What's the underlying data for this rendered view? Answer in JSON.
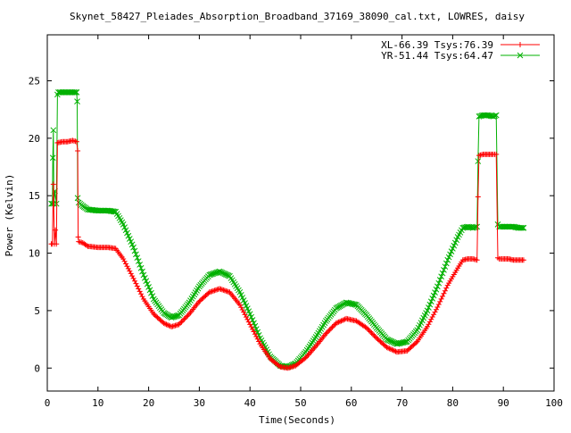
{
  "chart_data": {
    "type": "line",
    "title": "Skynet_58427_Pleiades_Absorption_Broadband_37169_38090_cal.txt, LOWRES, daisy",
    "xlabel": "Time(Seconds)",
    "ylabel": "Power (Kelvin)",
    "xlim": [
      0,
      100
    ],
    "ylim": [
      -2,
      29
    ],
    "xticks": [
      "0",
      "10",
      "20",
      "30",
      "40",
      "50",
      "60",
      "70",
      "80",
      "90",
      "100"
    ],
    "yticks": [
      "0",
      "5",
      "10",
      "15",
      "20",
      "25"
    ],
    "grid": false,
    "legend_position": "top-right",
    "series": [
      {
        "name": "XL-66.39 Tsys:76.39",
        "color": "#ff0000",
        "marker": "plus",
        "points": [
          [
            0.8,
            10.8
          ],
          [
            1.0,
            10.8
          ],
          [
            1.2,
            16.0
          ],
          [
            1.4,
            10.8
          ],
          [
            1.6,
            12.0
          ],
          [
            1.8,
            10.8
          ],
          [
            2.0,
            19.6
          ],
          [
            3.0,
            19.7
          ],
          [
            4.0,
            19.7
          ],
          [
            5.0,
            19.8
          ],
          [
            5.8,
            19.7
          ],
          [
            6.0,
            18.9
          ],
          [
            6.1,
            11.4
          ],
          [
            6.2,
            11.0
          ],
          [
            7.0,
            10.9
          ],
          [
            8.0,
            10.6
          ],
          [
            10.0,
            10.5
          ],
          [
            12.0,
            10.5
          ],
          [
            13.5,
            10.4
          ],
          [
            15.0,
            9.5
          ],
          [
            17.0,
            7.8
          ],
          [
            19.0,
            6.0
          ],
          [
            21.0,
            4.7
          ],
          [
            23.0,
            3.9
          ],
          [
            24.5,
            3.6
          ],
          [
            26.0,
            3.8
          ],
          [
            28.0,
            4.7
          ],
          [
            30.0,
            5.8
          ],
          [
            32.0,
            6.6
          ],
          [
            34.0,
            6.9
          ],
          [
            36.0,
            6.6
          ],
          [
            38.0,
            5.5
          ],
          [
            40.0,
            3.8
          ],
          [
            42.0,
            2.1
          ],
          [
            44.0,
            0.8
          ],
          [
            46.0,
            0.1
          ],
          [
            47.5,
            0.0
          ],
          [
            49.0,
            0.2
          ],
          [
            51.0,
            0.9
          ],
          [
            53.0,
            1.9
          ],
          [
            55.0,
            3.0
          ],
          [
            57.0,
            3.9
          ],
          [
            59.0,
            4.3
          ],
          [
            61.0,
            4.1
          ],
          [
            63.0,
            3.5
          ],
          [
            65.0,
            2.6
          ],
          [
            67.0,
            1.8
          ],
          [
            69.0,
            1.4
          ],
          [
            71.0,
            1.5
          ],
          [
            73.0,
            2.3
          ],
          [
            75.0,
            3.6
          ],
          [
            77.0,
            5.3
          ],
          [
            79.0,
            7.2
          ],
          [
            81.0,
            8.7
          ],
          [
            82.0,
            9.4
          ],
          [
            83.0,
            9.5
          ],
          [
            84.0,
            9.5
          ],
          [
            84.8,
            9.4
          ],
          [
            85.0,
            14.9
          ],
          [
            85.2,
            18.5
          ],
          [
            86.0,
            18.6
          ],
          [
            87.0,
            18.6
          ],
          [
            88.0,
            18.6
          ],
          [
            88.6,
            18.6
          ],
          [
            88.9,
            9.6
          ],
          [
            89.2,
            9.5
          ],
          [
            90.0,
            9.5
          ],
          [
            91.0,
            9.5
          ],
          [
            92.0,
            9.4
          ],
          [
            93.0,
            9.4
          ],
          [
            94.0,
            9.4
          ]
        ]
      },
      {
        "name": "YR-51.44 Tsys:64.47",
        "color": "#00b000",
        "marker": "cross",
        "points": [
          [
            0.8,
            14.3
          ],
          [
            1.0,
            14.3
          ],
          [
            1.1,
            18.3
          ],
          [
            1.2,
            20.7
          ],
          [
            1.3,
            14.3
          ],
          [
            1.5,
            15.4
          ],
          [
            1.8,
            14.3
          ],
          [
            2.0,
            23.8
          ],
          [
            2.2,
            24.0
          ],
          [
            3.0,
            24.0
          ],
          [
            4.0,
            24.0
          ],
          [
            5.0,
            24.0
          ],
          [
            5.8,
            24.0
          ],
          [
            5.9,
            23.2
          ],
          [
            6.0,
            14.8
          ],
          [
            6.2,
            14.4
          ],
          [
            7.0,
            14.1
          ],
          [
            8.0,
            13.8
          ],
          [
            10.0,
            13.7
          ],
          [
            12.0,
            13.7
          ],
          [
            13.5,
            13.6
          ],
          [
            15.0,
            12.5
          ],
          [
            17.0,
            10.5
          ],
          [
            19.0,
            8.1
          ],
          [
            21.0,
            6.0
          ],
          [
            23.0,
            4.8
          ],
          [
            24.5,
            4.4
          ],
          [
            26.0,
            4.6
          ],
          [
            28.0,
            5.7
          ],
          [
            30.0,
            7.1
          ],
          [
            32.0,
            8.1
          ],
          [
            34.0,
            8.4
          ],
          [
            36.0,
            8.0
          ],
          [
            38.0,
            6.6
          ],
          [
            40.0,
            4.7
          ],
          [
            42.0,
            2.6
          ],
          [
            44.0,
            1.0
          ],
          [
            46.0,
            0.2
          ],
          [
            47.5,
            0.1
          ],
          [
            49.0,
            0.4
          ],
          [
            51.0,
            1.4
          ],
          [
            53.0,
            2.7
          ],
          [
            55.0,
            4.1
          ],
          [
            57.0,
            5.2
          ],
          [
            59.0,
            5.7
          ],
          [
            61.0,
            5.5
          ],
          [
            63.0,
            4.6
          ],
          [
            65.0,
            3.5
          ],
          [
            67.0,
            2.5
          ],
          [
            69.0,
            2.1
          ],
          [
            71.0,
            2.3
          ],
          [
            73.0,
            3.3
          ],
          [
            75.0,
            5.0
          ],
          [
            77.0,
            7.1
          ],
          [
            79.0,
            9.4
          ],
          [
            81.0,
            11.4
          ],
          [
            82.0,
            12.2
          ],
          [
            83.0,
            12.3
          ],
          [
            84.0,
            12.2
          ],
          [
            84.8,
            12.3
          ],
          [
            85.0,
            18.0
          ],
          [
            85.2,
            21.9
          ],
          [
            86.0,
            22.0
          ],
          [
            87.0,
            22.0
          ],
          [
            88.0,
            21.9
          ],
          [
            88.6,
            22.0
          ],
          [
            88.9,
            12.5
          ],
          [
            89.2,
            12.3
          ],
          [
            90.0,
            12.3
          ],
          [
            91.0,
            12.3
          ],
          [
            92.0,
            12.3
          ],
          [
            93.0,
            12.2
          ],
          [
            94.0,
            12.2
          ]
        ]
      }
    ]
  }
}
